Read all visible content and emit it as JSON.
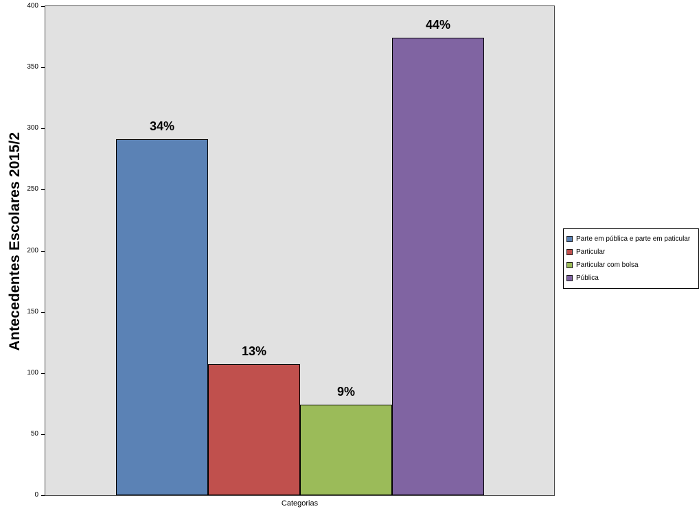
{
  "chart_data": {
    "type": "bar",
    "title": "",
    "ylabel": "Antecedentes Escolares 2015/2",
    "xlabel": "Categorias",
    "ylim": [
      0,
      400
    ],
    "yticks": [
      0,
      50,
      100,
      150,
      200,
      250,
      300,
      350,
      400
    ],
    "grid": false,
    "legend_position": "right",
    "plot_background": "#e1e1e1",
    "categories": [
      "Parte em pública e parte em paticular",
      "Particular",
      "Particular com bolsa",
      "Pública"
    ],
    "values": [
      291,
      107,
      74,
      374
    ],
    "data_labels": [
      "34%",
      "13%",
      "9%",
      "44%"
    ],
    "colors": [
      "#5b82b5",
      "#c0504d",
      "#9bbb59",
      "#8064a2"
    ]
  }
}
